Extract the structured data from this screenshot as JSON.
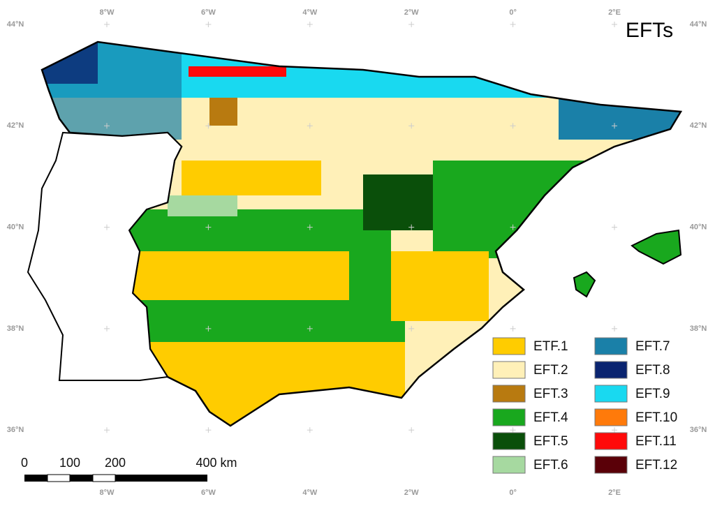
{
  "title": "EFTs",
  "lon_labels": [
    "8°W",
    "6°W",
    "4°W",
    "2°W",
    "0°",
    "2°E"
  ],
  "lat_labels": [
    "44°N",
    "42°N",
    "40°N",
    "38°N",
    "36°N"
  ],
  "legend": [
    {
      "label": "ETF.1",
      "color": "#ffcc00"
    },
    {
      "label": "EFT.2",
      "color": "#fff0b8"
    },
    {
      "label": "EFT.3",
      "color": "#b87a10"
    },
    {
      "label": "EFT.4",
      "color": "#19a81e"
    },
    {
      "label": "EFT.5",
      "color": "#0a4f0a"
    },
    {
      "label": "EFT.6",
      "color": "#a6d9a0"
    },
    {
      "label": "EFT.7",
      "color": "#1a80a8"
    },
    {
      "label": "EFT.8",
      "color": "#0a2470"
    },
    {
      "label": "EFT.9",
      "color": "#19d9f0"
    },
    {
      "label": "EFT.10",
      "color": "#ff7a0a"
    },
    {
      "label": "EFT.11",
      "color": "#ff0a0a"
    },
    {
      "label": "EFT.12",
      "color": "#5a0008"
    }
  ],
  "scale_bar": {
    "labels": [
      "0",
      "100",
      "200",
      "400 km"
    ]
  }
}
